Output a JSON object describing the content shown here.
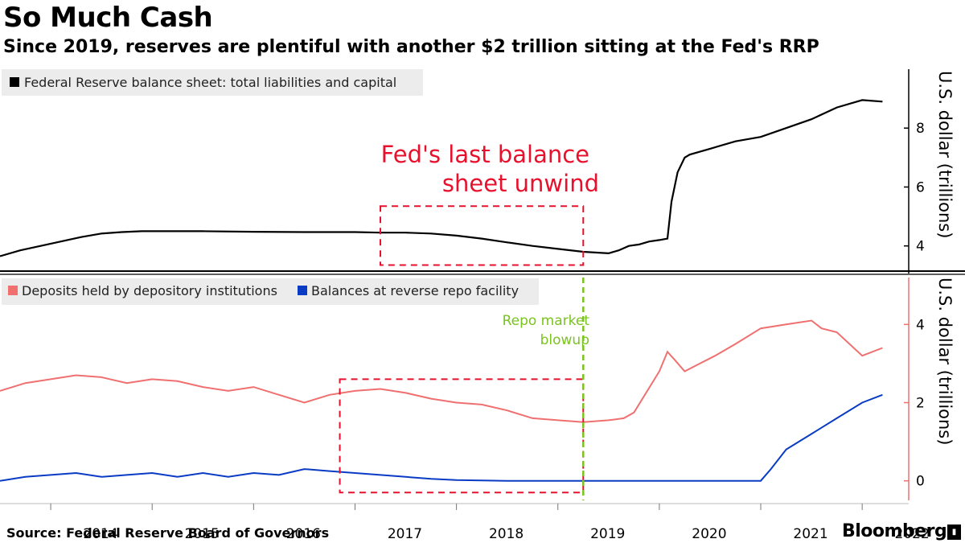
{
  "title": "So Much Cash",
  "subtitle": "Since 2019, reserves are plentiful with another $2 trillion sitting at the Fed's RRP",
  "source": "Source: Federal Reserve Board of Governors",
  "brand": "Bloomberg",
  "colors": {
    "balance_sheet": "#000000",
    "deposits": "#f07070",
    "rrp": "#0a3bc4",
    "annotation_box": "#e8112d",
    "repo_line": "#7ac41f",
    "lower_axis": "#f07070"
  },
  "chart_data": [
    {
      "type": "line",
      "legend": [
        "Federal Reserve balance sheet: total liabilities and capital"
      ],
      "ylabel": "U.S. dollar (trillions)",
      "yticks": [
        4,
        6,
        8
      ],
      "ylim": [
        3.2,
        10.0
      ],
      "xlim": [
        2013.5,
        2022.3
      ],
      "annotation": {
        "text_lines": [
          "Fed's last balance",
          "sheet unwind"
        ],
        "box_x": [
          2017.25,
          2019.25
        ],
        "box_y": [
          3.35,
          5.35
        ]
      },
      "series": [
        {
          "name": "Federal Reserve balance sheet: total liabilities and capital",
          "x": [
            2013.5,
            2013.7,
            2013.9,
            2014.1,
            2014.3,
            2014.5,
            2014.7,
            2014.9,
            2015.0,
            2015.5,
            2016.0,
            2016.5,
            2017.0,
            2017.25,
            2017.5,
            2017.75,
            2018.0,
            2018.25,
            2018.5,
            2018.75,
            2019.0,
            2019.25,
            2019.5,
            2019.6,
            2019.7,
            2019.8,
            2019.9,
            2020.0,
            2020.08,
            2020.12,
            2020.18,
            2020.25,
            2020.3,
            2020.5,
            2020.75,
            2021.0,
            2021.25,
            2021.5,
            2021.75,
            2022.0,
            2022.2
          ],
          "values": [
            3.65,
            3.85,
            4.0,
            4.15,
            4.3,
            4.42,
            4.47,
            4.5,
            4.5,
            4.5,
            4.48,
            4.47,
            4.47,
            4.45,
            4.45,
            4.42,
            4.35,
            4.25,
            4.12,
            4.0,
            3.9,
            3.8,
            3.75,
            3.85,
            4.0,
            4.05,
            4.15,
            4.2,
            4.25,
            5.5,
            6.5,
            7.0,
            7.1,
            7.3,
            7.55,
            7.7,
            8.0,
            8.3,
            8.7,
            8.95,
            8.9
          ]
        }
      ]
    },
    {
      "type": "line",
      "legend": [
        "Deposits held by depository institutions",
        "Balances at reverse repo facility"
      ],
      "ylabel": "U.S. dollar (trillions)",
      "yticks": [
        0,
        2,
        4
      ],
      "ylim": [
        -0.5,
        5.2
      ],
      "xlim": [
        2013.5,
        2022.3
      ],
      "annotation": {
        "text_lines": [
          "Repo market",
          "blowup"
        ],
        "x": 2019.25,
        "box_x": [
          2016.85,
          2019.25
        ],
        "box_y": [
          -0.3,
          2.6
        ]
      },
      "xticks": [
        "2014",
        "2015",
        "2016",
        "2017",
        "2018",
        "2019",
        "2020",
        "2021",
        "2022"
      ],
      "xtick_values": [
        2014,
        2015,
        2016,
        2017,
        2018,
        2019,
        2020,
        2021,
        2022
      ],
      "series": [
        {
          "name": "Deposits held by depository institutions",
          "x": [
            2013.5,
            2013.75,
            2014.0,
            2014.25,
            2014.5,
            2014.75,
            2015.0,
            2015.25,
            2015.5,
            2015.75,
            2016.0,
            2016.25,
            2016.5,
            2016.75,
            2017.0,
            2017.25,
            2017.5,
            2017.75,
            2018.0,
            2018.25,
            2018.5,
            2018.75,
            2019.0,
            2019.25,
            2019.5,
            2019.65,
            2019.75,
            2020.0,
            2020.08,
            2020.15,
            2020.25,
            2020.4,
            2020.55,
            2020.75,
            2021.0,
            2021.25,
            2021.5,
            2021.6,
            2021.75,
            2022.0,
            2022.2
          ],
          "values": [
            2.3,
            2.5,
            2.6,
            2.7,
            2.65,
            2.5,
            2.6,
            2.55,
            2.4,
            2.3,
            2.4,
            2.2,
            2.0,
            2.2,
            2.3,
            2.35,
            2.25,
            2.1,
            2.0,
            1.95,
            1.8,
            1.6,
            1.55,
            1.5,
            1.55,
            1.6,
            1.75,
            2.8,
            3.3,
            3.1,
            2.8,
            3.0,
            3.2,
            3.5,
            3.9,
            4.0,
            4.1,
            3.9,
            3.8,
            3.2,
            3.4
          ]
        },
        {
          "name": "Balances at reverse repo facility",
          "x": [
            2013.5,
            2013.75,
            2014.0,
            2014.25,
            2014.5,
            2014.75,
            2015.0,
            2015.25,
            2015.5,
            2015.75,
            2016.0,
            2016.25,
            2016.5,
            2016.75,
            2017.0,
            2017.25,
            2017.5,
            2017.75,
            2018.0,
            2018.5,
            2019.0,
            2019.5,
            2020.0,
            2020.25,
            2020.5,
            2020.75,
            2021.0,
            2021.1,
            2021.25,
            2021.5,
            2021.75,
            2022.0,
            2022.2
          ],
          "values": [
            0.0,
            0.1,
            0.15,
            0.2,
            0.1,
            0.15,
            0.2,
            0.1,
            0.2,
            0.1,
            0.2,
            0.15,
            0.3,
            0.25,
            0.2,
            0.15,
            0.1,
            0.05,
            0.02,
            0.0,
            0.0,
            0.0,
            0.0,
            0.0,
            0.0,
            0.0,
            0.0,
            0.3,
            0.8,
            1.2,
            1.6,
            2.0,
            2.2
          ]
        }
      ]
    }
  ]
}
